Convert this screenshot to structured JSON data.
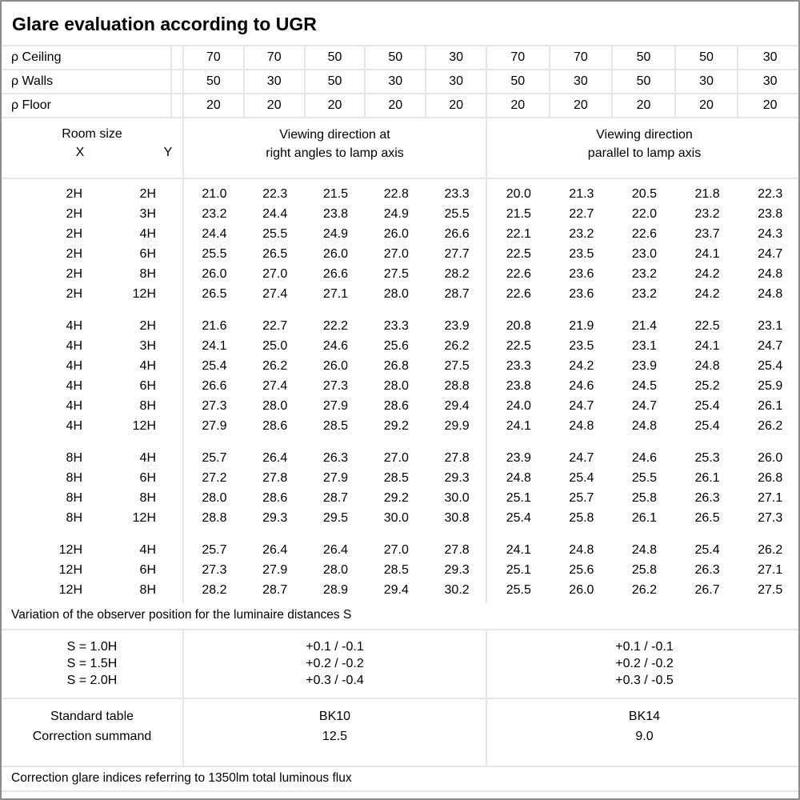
{
  "title": "Glare evaluation according to UGR",
  "colors": {
    "outer_border": "#8c8c8c",
    "grid_line": "#e6e6e6",
    "text": "#000000",
    "background": "#ffffff"
  },
  "reflectance": {
    "rows": [
      {
        "label": "ρ Ceiling",
        "values": [
          "70",
          "70",
          "50",
          "50",
          "30",
          "70",
          "70",
          "50",
          "50",
          "30"
        ]
      },
      {
        "label": "ρ Walls",
        "values": [
          "50",
          "30",
          "50",
          "30",
          "30",
          "50",
          "30",
          "50",
          "30",
          "30"
        ]
      },
      {
        "label": "ρ Floor",
        "values": [
          "20",
          "20",
          "20",
          "20",
          "20",
          "20",
          "20",
          "20",
          "20",
          "20"
        ]
      }
    ]
  },
  "room_size": {
    "label": "Room size",
    "x": "X",
    "y": "Y"
  },
  "viewing_groups": {
    "right_angles": "Viewing direction at\nright angles to lamp axis",
    "parallel": "Viewing direction\nparallel to lamp axis"
  },
  "ugr_table": {
    "blocks": [
      {
        "rows": [
          {
            "x": "2H",
            "y": "2H",
            "right_angles": [
              "21.0",
              "22.3",
              "21.5",
              "22.8",
              "23.3"
            ],
            "parallel": [
              "20.0",
              "21.3",
              "20.5",
              "21.8",
              "22.3"
            ]
          },
          {
            "x": "2H",
            "y": "3H",
            "right_angles": [
              "23.2",
              "24.4",
              "23.8",
              "24.9",
              "25.5"
            ],
            "parallel": [
              "21.5",
              "22.7",
              "22.0",
              "23.2",
              "23.8"
            ]
          },
          {
            "x": "2H",
            "y": "4H",
            "right_angles": [
              "24.4",
              "25.5",
              "24.9",
              "26.0",
              "26.6"
            ],
            "parallel": [
              "22.1",
              "23.2",
              "22.6",
              "23.7",
              "24.3"
            ]
          },
          {
            "x": "2H",
            "y": "6H",
            "right_angles": [
              "25.5",
              "26.5",
              "26.0",
              "27.0",
              "27.7"
            ],
            "parallel": [
              "22.5",
              "23.5",
              "23.0",
              "24.1",
              "24.7"
            ]
          },
          {
            "x": "2H",
            "y": "8H",
            "right_angles": [
              "26.0",
              "27.0",
              "26.6",
              "27.5",
              "28.2"
            ],
            "parallel": [
              "22.6",
              "23.6",
              "23.2",
              "24.2",
              "24.8"
            ]
          },
          {
            "x": "2H",
            "y": "12H",
            "right_angles": [
              "26.5",
              "27.4",
              "27.1",
              "28.0",
              "28.7"
            ],
            "parallel": [
              "22.6",
              "23.6",
              "23.2",
              "24.2",
              "24.8"
            ]
          }
        ]
      },
      {
        "rows": [
          {
            "x": "4H",
            "y": "2H",
            "right_angles": [
              "21.6",
              "22.7",
              "22.2",
              "23.3",
              "23.9"
            ],
            "parallel": [
              "20.8",
              "21.9",
              "21.4",
              "22.5",
              "23.1"
            ]
          },
          {
            "x": "4H",
            "y": "3H",
            "right_angles": [
              "24.1",
              "25.0",
              "24.6",
              "25.6",
              "26.2"
            ],
            "parallel": [
              "22.5",
              "23.5",
              "23.1",
              "24.1",
              "24.7"
            ]
          },
          {
            "x": "4H",
            "y": "4H",
            "right_angles": [
              "25.4",
              "26.2",
              "26.0",
              "26.8",
              "27.5"
            ],
            "parallel": [
              "23.3",
              "24.2",
              "23.9",
              "24.8",
              "25.4"
            ]
          },
          {
            "x": "4H",
            "y": "6H",
            "right_angles": [
              "26.6",
              "27.4",
              "27.3",
              "28.0",
              "28.8"
            ],
            "parallel": [
              "23.8",
              "24.6",
              "24.5",
              "25.2",
              "25.9"
            ]
          },
          {
            "x": "4H",
            "y": "8H",
            "right_angles": [
              "27.3",
              "28.0",
              "27.9",
              "28.6",
              "29.4"
            ],
            "parallel": [
              "24.0",
              "24.7",
              "24.7",
              "25.4",
              "26.1"
            ]
          },
          {
            "x": "4H",
            "y": "12H",
            "right_angles": [
              "27.9",
              "28.6",
              "28.5",
              "29.2",
              "29.9"
            ],
            "parallel": [
              "24.1",
              "24.8",
              "24.8",
              "25.4",
              "26.2"
            ]
          }
        ]
      },
      {
        "rows": [
          {
            "x": "8H",
            "y": "4H",
            "right_angles": [
              "25.7",
              "26.4",
              "26.3",
              "27.0",
              "27.8"
            ],
            "parallel": [
              "23.9",
              "24.7",
              "24.6",
              "25.3",
              "26.0"
            ]
          },
          {
            "x": "8H",
            "y": "6H",
            "right_angles": [
              "27.2",
              "27.8",
              "27.9",
              "28.5",
              "29.3"
            ],
            "parallel": [
              "24.8",
              "25.4",
              "25.5",
              "26.1",
              "26.8"
            ]
          },
          {
            "x": "8H",
            "y": "8H",
            "right_angles": [
              "28.0",
              "28.6",
              "28.7",
              "29.2",
              "30.0"
            ],
            "parallel": [
              "25.1",
              "25.7",
              "25.8",
              "26.3",
              "27.1"
            ]
          },
          {
            "x": "8H",
            "y": "12H",
            "right_angles": [
              "28.8",
              "29.3",
              "29.5",
              "30.0",
              "30.8"
            ],
            "parallel": [
              "25.4",
              "25.8",
              "26.1",
              "26.5",
              "27.3"
            ]
          }
        ]
      },
      {
        "rows": [
          {
            "x": "12H",
            "y": "4H",
            "right_angles": [
              "25.7",
              "26.4",
              "26.4",
              "27.0",
              "27.8"
            ],
            "parallel": [
              "24.1",
              "24.8",
              "24.8",
              "25.4",
              "26.2"
            ]
          },
          {
            "x": "12H",
            "y": "6H",
            "right_angles": [
              "27.3",
              "27.9",
              "28.0",
              "28.5",
              "29.3"
            ],
            "parallel": [
              "25.1",
              "25.6",
              "25.8",
              "26.3",
              "27.1"
            ]
          },
          {
            "x": "12H",
            "y": "8H",
            "right_angles": [
              "28.2",
              "28.7",
              "28.9",
              "29.4",
              "30.2"
            ],
            "parallel": [
              "25.5",
              "26.0",
              "26.2",
              "26.7",
              "27.5"
            ]
          }
        ]
      }
    ]
  },
  "variation_note": "Variation of the observer position for the luminaire distances S",
  "variation": {
    "s_labels": [
      "S = 1.0H",
      "S = 1.5H",
      "S = 2.0H"
    ],
    "right_angles": [
      "+0.1 / -0.1",
      "+0.2 / -0.2",
      "+0.3 / -0.4"
    ],
    "parallel": [
      "+0.1 / -0.1",
      "+0.2 / -0.2",
      "+0.3 / -0.5"
    ]
  },
  "summary": {
    "labels": [
      "Standard table",
      "Correction summand"
    ],
    "right_angles": [
      "BK10",
      "12.5"
    ],
    "parallel": [
      "BK14",
      "9.0"
    ]
  },
  "footer": "Correction glare indices referring to 1350lm total luminous flux"
}
